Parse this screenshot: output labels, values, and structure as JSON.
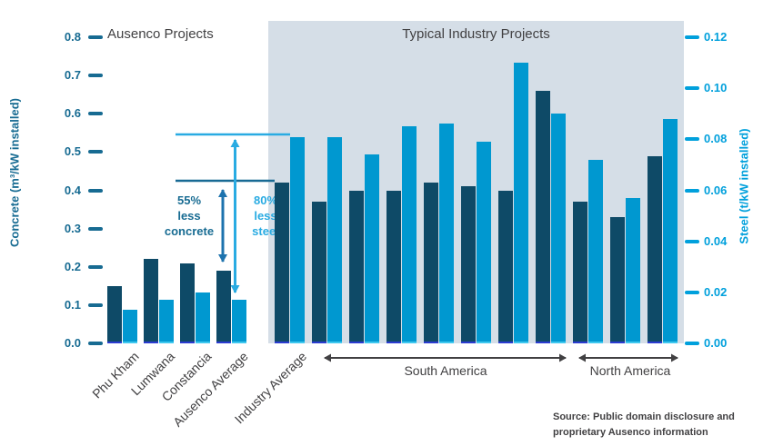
{
  "titles": {
    "ausenco": "Ausenco Projects",
    "industry": "Typical Industry Projects"
  },
  "left_axis": {
    "title": "Concrete (m³/kW installed)",
    "ticks": [
      "0.0",
      "0.1",
      "0.2",
      "0.3",
      "0.4",
      "0.5",
      "0.6",
      "0.7",
      "0.8"
    ]
  },
  "right_axis": {
    "title": "Steel (t/kW installed)",
    "ticks": [
      "0.00",
      "0.02",
      "0.04",
      "0.06",
      "0.08",
      "0.10",
      "0.12"
    ]
  },
  "annotations": {
    "concrete": "55%\nless\nconcrete",
    "steel": "80%\nless\nsteel"
  },
  "regions": {
    "south_america": "South America",
    "north_america": "North America"
  },
  "source": "Source: Public domain disclosure and proprietary Ausenco information",
  "palette": {
    "concrete_bar": "#0e4a67",
    "steel_bar": "#0098d0",
    "panel_background": "#d5dee7",
    "left_axis_color": "#176b92",
    "right_axis_color": "#00a0dc",
    "annotation_concrete_color": "#176b92",
    "annotation_steel_color": "#29abe2",
    "text_color": "#414042"
  },
  "chart_data": {
    "type": "bar",
    "left_axis": {
      "label": "Concrete (m³/kW installed)",
      "range": [
        0,
        0.8
      ],
      "tick_step": 0.1
    },
    "right_axis": {
      "label": "Steel (t/kW installed)",
      "range": [
        0,
        0.12
      ],
      "tick_step": 0.02
    },
    "grid": false,
    "groups": [
      {
        "name": "Ausenco Projects",
        "categories": [
          "Phu Kham",
          "Lumwana",
          "Constancia",
          "Ausenco Average"
        ],
        "series": [
          {
            "name": "Concrete",
            "axis": "left",
            "values": [
              0.15,
              0.22,
              0.21,
              0.19
            ]
          },
          {
            "name": "Steel",
            "axis": "right",
            "values": [
              0.013,
              0.017,
              0.02,
              0.017
            ]
          }
        ]
      },
      {
        "name": "Typical Industry Projects",
        "categories": [
          "Industry Average",
          "",
          "",
          "",
          "",
          "",
          "",
          "",
          "",
          "",
          ""
        ],
        "regions": [
          {
            "label": "South America",
            "from_index": 1,
            "to_index": 7
          },
          {
            "label": "North America",
            "from_index": 8,
            "to_index": 10
          }
        ],
        "series": [
          {
            "name": "Concrete",
            "axis": "left",
            "values": [
              0.42,
              0.37,
              0.4,
              0.4,
              0.42,
              0.41,
              0.4,
              0.66,
              0.37,
              0.33,
              0.49
            ]
          },
          {
            "name": "Steel",
            "axis": "right",
            "values": [
              0.081,
              0.081,
              0.074,
              0.085,
              0.086,
              0.079,
              0.11,
              0.09,
              0.072,
              0.057,
              0.088
            ]
          }
        ]
      }
    ],
    "reference_levels": {
      "industry_average_concrete": 0.425,
      "industry_average_steel": 0.082
    },
    "callouts": [
      {
        "text": "55% less concrete",
        "compares": "Ausenco Average concrete 0.19 vs Industry Average 0.425"
      },
      {
        "text": "80% less steel",
        "compares": "Ausenco Average steel 0.017 vs Industry Average 0.082"
      }
    ]
  }
}
